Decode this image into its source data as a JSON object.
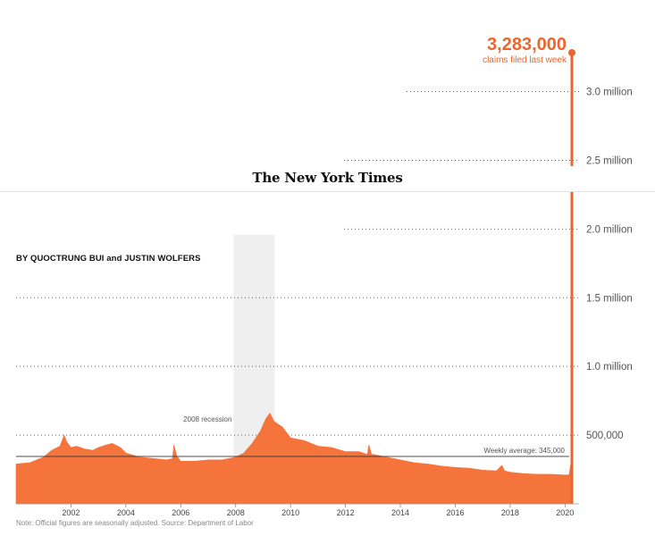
{
  "header": {
    "publication": "The New York Times",
    "byline": "BY QUOCTRUNG BUI and JUSTIN WOLFERS"
  },
  "callout": {
    "value": "3,283,000",
    "label": "claims filed last week"
  },
  "footnote": "Note: Official figures are seasonally adjusted. Source: Department of Labor",
  "colors": {
    "accent": "#f4743b",
    "callout": "#e8672f",
    "recession_band": "#efefef"
  },
  "chart_data": {
    "type": "area",
    "xlabel": "",
    "ylabel": "",
    "xlim": [
      2000.0,
      2020.25
    ],
    "ylim": [
      0,
      3283000
    ],
    "y_ticks": [
      {
        "value": 500000,
        "label": "500,000"
      },
      {
        "value": 1000000,
        "label": "1.0 million"
      },
      {
        "value": 1500000,
        "label": "1.5 million"
      },
      {
        "value": 2000000,
        "label": "2.0 million"
      },
      {
        "value": 2500000,
        "label": "2.5 million"
      },
      {
        "value": 3000000,
        "label": "3.0 million"
      }
    ],
    "x_ticks": [
      {
        "value": 2002,
        "label": "2002"
      },
      {
        "value": 2004,
        "label": "2004"
      },
      {
        "value": 2006,
        "label": "2006"
      },
      {
        "value": 2008,
        "label": "2008"
      },
      {
        "value": 2010,
        "label": "2010"
      },
      {
        "value": 2012,
        "label": "2012"
      },
      {
        "value": 2014,
        "label": "2014"
      },
      {
        "value": 2016,
        "label": "2016"
      },
      {
        "value": 2018,
        "label": "2018"
      },
      {
        "value": 2020,
        "label": "2020"
      }
    ],
    "recession": {
      "start": 2007.92,
      "end": 2009.42,
      "label": "2008 recession"
    },
    "average": {
      "value": 345000,
      "label": "Weekly average: 345,000"
    },
    "series": [
      {
        "points": [
          [
            2000.0,
            290000
          ],
          [
            2000.5,
            300000
          ],
          [
            2001.0,
            340000
          ],
          [
            2001.3,
            390000
          ],
          [
            2001.6,
            420000
          ],
          [
            2001.75,
            500000
          ],
          [
            2001.85,
            450000
          ],
          [
            2002.0,
            410000
          ],
          [
            2002.2,
            420000
          ],
          [
            2002.5,
            400000
          ],
          [
            2002.8,
            390000
          ],
          [
            2003.0,
            410000
          ],
          [
            2003.3,
            430000
          ],
          [
            2003.5,
            440000
          ],
          [
            2003.8,
            410000
          ],
          [
            2004.0,
            370000
          ],
          [
            2004.5,
            340000
          ],
          [
            2005.0,
            330000
          ],
          [
            2005.5,
            320000
          ],
          [
            2005.7,
            330000
          ],
          [
            2005.75,
            430000
          ],
          [
            2005.85,
            350000
          ],
          [
            2006.0,
            310000
          ],
          [
            2006.5,
            310000
          ],
          [
            2007.0,
            320000
          ],
          [
            2007.5,
            320000
          ],
          [
            2008.0,
            340000
          ],
          [
            2008.3,
            370000
          ],
          [
            2008.6,
            440000
          ],
          [
            2008.9,
            530000
          ],
          [
            2009.1,
            620000
          ],
          [
            2009.25,
            660000
          ],
          [
            2009.4,
            600000
          ],
          [
            2009.7,
            560000
          ],
          [
            2010.0,
            480000
          ],
          [
            2010.5,
            460000
          ],
          [
            2011.0,
            420000
          ],
          [
            2011.5,
            410000
          ],
          [
            2012.0,
            380000
          ],
          [
            2012.5,
            380000
          ],
          [
            2012.8,
            360000
          ],
          [
            2012.85,
            430000
          ],
          [
            2012.95,
            360000
          ],
          [
            2013.0,
            360000
          ],
          [
            2013.5,
            340000
          ],
          [
            2014.0,
            320000
          ],
          [
            2014.5,
            300000
          ],
          [
            2015.0,
            290000
          ],
          [
            2015.5,
            275000
          ],
          [
            2016.0,
            265000
          ],
          [
            2016.5,
            260000
          ],
          [
            2017.0,
            245000
          ],
          [
            2017.5,
            240000
          ],
          [
            2017.7,
            280000
          ],
          [
            2017.8,
            240000
          ],
          [
            2018.0,
            230000
          ],
          [
            2018.5,
            220000
          ],
          [
            2019.0,
            215000
          ],
          [
            2019.5,
            215000
          ],
          [
            2020.0,
            210000
          ],
          [
            2020.15,
            211000
          ],
          [
            2020.2,
            282000
          ]
        ]
      }
    ],
    "highlight_bar": {
      "x": 2020.25,
      "value": 3283000
    }
  }
}
